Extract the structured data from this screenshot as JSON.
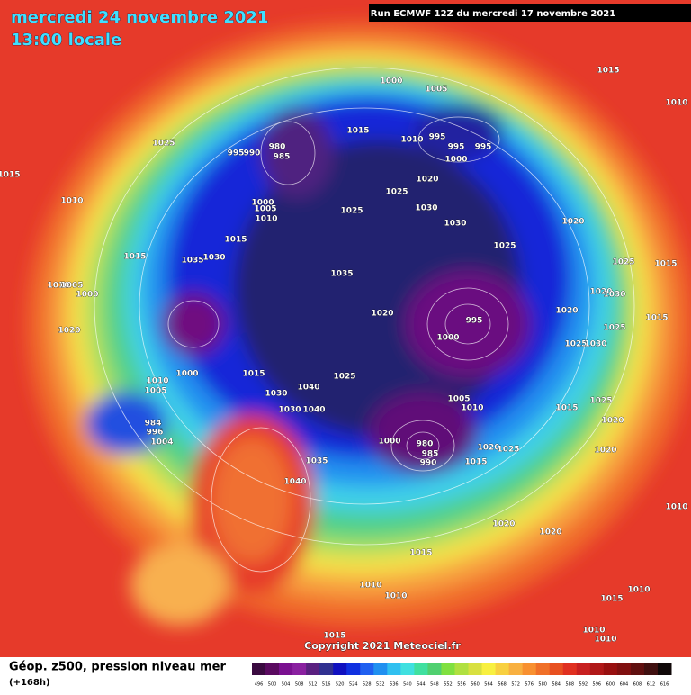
{
  "header": {
    "date": "mercredi 24 novembre 2021",
    "time": "13:00 locale",
    "run": "Run ECMWF 12Z du mercredi 17 novembre 2021"
  },
  "isobar_labels": [
    1000,
    1005,
    1015,
    1025,
    1015,
    995,
    990,
    980,
    985,
    1015,
    1010,
    995,
    995,
    995,
    1000,
    1010,
    1000,
    1005,
    1010,
    1025,
    1020,
    1025,
    1030,
    1030,
    1020,
    1015,
    1025,
    1015,
    1035,
    1030,
    1025,
    1015,
    1035,
    1010,
    1005,
    1000,
    1020,
    1030,
    1020,
    995,
    1020,
    1015,
    1020,
    1000,
    1025,
    1025,
    1030,
    1000,
    1015,
    1025,
    1010,
    1005,
    1030,
    1040,
    1030,
    1040,
    1005,
    1010,
    1015,
    1025,
    1020,
    980,
    985,
    990,
    1000,
    1020,
    1025,
    1015,
    1020,
    984,
    996,
    1004,
    1035,
    1040,
    1020,
    1020,
    1010,
    1015,
    1010,
    1010,
    1015,
    1010,
    1015,
    1010,
    1010,
    1010
  ],
  "footer": {
    "caption": "Géop. z500, pression niveau mer",
    "lead": "(+168h)",
    "copyright": "Copyright 2021 Meteociel.fr"
  },
  "colorbar": {
    "labels": [
      496,
      500,
      504,
      508,
      512,
      516,
      520,
      524,
      528,
      532,
      536,
      540,
      544,
      548,
      552,
      556,
      560,
      564,
      568,
      572,
      576,
      580,
      584,
      588,
      592,
      596,
      600,
      604,
      608,
      612,
      616
    ]
  }
}
